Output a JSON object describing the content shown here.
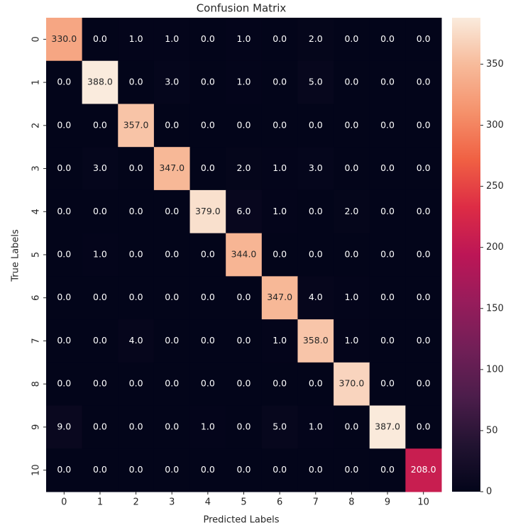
{
  "chart_data": {
    "type": "heatmap",
    "title": "Confusion Matrix",
    "x_label": "Predicted Labels",
    "y_label": "True Labels",
    "x_categories": [
      "0",
      "1",
      "2",
      "3",
      "4",
      "5",
      "6",
      "7",
      "8",
      "9",
      "10"
    ],
    "y_categories": [
      "0",
      "1",
      "2",
      "3",
      "4",
      "5",
      "6",
      "7",
      "8",
      "9",
      "10"
    ],
    "values": [
      [
        330,
        0,
        1,
        1,
        0,
        1,
        0,
        2,
        0,
        0,
        0
      ],
      [
        0,
        388,
        0,
        3,
        0,
        1,
        0,
        5,
        0,
        0,
        0
      ],
      [
        0,
        0,
        357,
        0,
        0,
        0,
        0,
        0,
        0,
        0,
        0
      ],
      [
        0,
        3,
        0,
        347,
        0,
        2,
        1,
        3,
        0,
        0,
        0
      ],
      [
        0,
        0,
        0,
        0,
        379,
        6,
        1,
        0,
        2,
        0,
        0
      ],
      [
        0,
        1,
        0,
        0,
        0,
        344,
        0,
        0,
        0,
        0,
        0
      ],
      [
        0,
        0,
        0,
        0,
        0,
        0,
        347,
        4,
        1,
        0,
        0
      ],
      [
        0,
        0,
        4,
        0,
        0,
        0,
        1,
        358,
        1,
        0,
        0
      ],
      [
        0,
        0,
        0,
        0,
        0,
        0,
        0,
        0,
        370,
        0,
        0
      ],
      [
        9,
        0,
        0,
        0,
        1,
        0,
        5,
        1,
        0,
        387,
        0
      ],
      [
        0,
        0,
        0,
        0,
        0,
        0,
        0,
        0,
        0,
        0,
        208
      ]
    ],
    "value_labels": [
      [
        "330.0",
        "0.0",
        "1.0",
        "1.0",
        "0.0",
        "1.0",
        "0.0",
        "2.0",
        "0.0",
        "0.0",
        "0.0"
      ],
      [
        "0.0",
        "388.0",
        "0.0",
        "3.0",
        "0.0",
        "1.0",
        "0.0",
        "5.0",
        "0.0",
        "0.0",
        "0.0"
      ],
      [
        "0.0",
        "0.0",
        "357.0",
        "0.0",
        "0.0",
        "0.0",
        "0.0",
        "0.0",
        "0.0",
        "0.0",
        "0.0"
      ],
      [
        "0.0",
        "3.0",
        "0.0",
        "347.0",
        "0.0",
        "2.0",
        "1.0",
        "3.0",
        "0.0",
        "0.0",
        "0.0"
      ],
      [
        "0.0",
        "0.0",
        "0.0",
        "0.0",
        "379.0",
        "6.0",
        "1.0",
        "0.0",
        "2.0",
        "0.0",
        "0.0"
      ],
      [
        "0.0",
        "1.0",
        "0.0",
        "0.0",
        "0.0",
        "344.0",
        "0.0",
        "0.0",
        "0.0",
        "0.0",
        "0.0"
      ],
      [
        "0.0",
        "0.0",
        "0.0",
        "0.0",
        "0.0",
        "0.0",
        "347.0",
        "4.0",
        "1.0",
        "0.0",
        "0.0"
      ],
      [
        "0.0",
        "0.0",
        "4.0",
        "0.0",
        "0.0",
        "0.0",
        "1.0",
        "358.0",
        "1.0",
        "0.0",
        "0.0"
      ],
      [
        "0.0",
        "0.0",
        "0.0",
        "0.0",
        "0.0",
        "0.0",
        "0.0",
        "0.0",
        "370.0",
        "0.0",
        "0.0"
      ],
      [
        "9.0",
        "0.0",
        "0.0",
        "0.0",
        "1.0",
        "0.0",
        "5.0",
        "1.0",
        "0.0",
        "387.0",
        "0.0"
      ],
      [
        "0.0",
        "0.0",
        "0.0",
        "0.0",
        "0.0",
        "0.0",
        "0.0",
        "0.0",
        "0.0",
        "0.0",
        "208.0"
      ]
    ],
    "zlim": [
      0,
      388
    ],
    "zticks": [
      0,
      50,
      100,
      150,
      200,
      250,
      300,
      350
    ],
    "colormap": [
      "#03051a",
      "#221331",
      "#4c1d4b",
      "#711f57",
      "#971c5b",
      "#bc1656",
      "#dd2c45",
      "#f06043",
      "#f5916b",
      "#f7ba9a",
      "#faebdd"
    ]
  }
}
